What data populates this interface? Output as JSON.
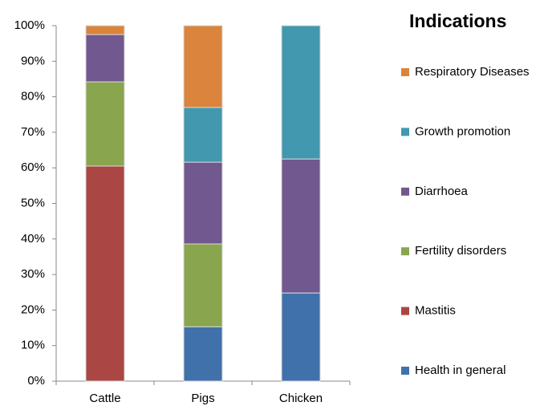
{
  "chart_data": {
    "type": "stacked-bar",
    "legend_title": "Indications",
    "categories": [
      "Cattle",
      "Pigs",
      "Chicken"
    ],
    "series": [
      {
        "name": "Health in general",
        "color": "#4171aa",
        "values": [
          0,
          15.3,
          24.8
        ]
      },
      {
        "name": "Mastitis",
        "color": "#aa4643",
        "values": [
          60.5,
          0,
          0
        ]
      },
      {
        "name": "Fertility disorders",
        "color": "#89a54e",
        "values": [
          23.7,
          23.3,
          0
        ]
      },
      {
        "name": "Diarrhoea",
        "color": "#71588f",
        "values": [
          13.3,
          23.0,
          37.7
        ]
      },
      {
        "name": "Growth promotion",
        "color": "#4198af",
        "values": [
          0,
          15.4,
          37.5
        ]
      },
      {
        "name": "Respiratory Diseases",
        "color": "#db843d",
        "values": [
          2.5,
          23.0,
          0
        ]
      }
    ],
    "ylim": [
      0,
      100
    ],
    "yticks": [
      {
        "value": 0,
        "label": "0%"
      },
      {
        "value": 10,
        "label": "10%"
      },
      {
        "value": 20,
        "label": "20%"
      },
      {
        "value": 30,
        "label": "30%"
      },
      {
        "value": 40,
        "label": "40%"
      },
      {
        "value": 50,
        "label": "50%"
      },
      {
        "value": 60,
        "label": "60%"
      },
      {
        "value": 70,
        "label": "70%"
      },
      {
        "value": 80,
        "label": "80%"
      },
      {
        "value": 90,
        "label": "90%"
      },
      {
        "value": 100,
        "label": "100%"
      }
    ],
    "legend_position": "right"
  }
}
